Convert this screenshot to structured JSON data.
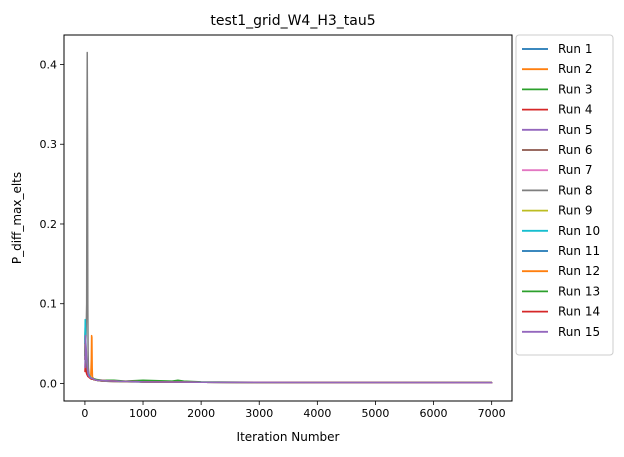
{
  "chart_data": {
    "type": "line",
    "title": "test1_grid_W4_H3_tau5",
    "xlabel": "Iteration Number",
    "ylabel": "P_diff_max_elts",
    "xlim": [
      -360,
      7350
    ],
    "ylim": [
      -0.022,
      0.437
    ],
    "xticks": [
      0,
      1000,
      2000,
      3000,
      4000,
      5000,
      6000,
      7000
    ],
    "yticks": [
      0.0,
      0.1,
      0.2,
      0.3,
      0.4
    ],
    "xtick_labels": [
      "0",
      "1000",
      "2000",
      "3000",
      "4000",
      "5000",
      "6000",
      "7000"
    ],
    "ytick_labels": [
      "0.0",
      "0.1",
      "0.2",
      "0.3",
      "0.4"
    ],
    "grid": false,
    "legend_position": "outside-right-top",
    "series": [
      {
        "name": "Run 1",
        "color": "#1f77b4",
        "x": [
          1,
          5,
          10,
          15,
          20,
          25,
          30,
          40,
          50,
          60,
          80,
          100,
          150,
          200,
          300,
          500,
          800,
          1200,
          2000,
          3000,
          5000,
          7000
        ],
        "y": [
          0.055,
          0.07,
          0.045,
          0.035,
          0.03,
          0.025,
          0.02,
          0.015,
          0.012,
          0.01,
          0.008,
          0.007,
          0.005,
          0.004,
          0.003,
          0.0025,
          0.002,
          0.0018,
          0.0015,
          0.0012,
          0.001,
          0.001
        ]
      },
      {
        "name": "Run 2",
        "color": "#ff7f0e",
        "x": [
          1,
          5,
          10,
          20,
          30,
          50,
          80,
          100,
          110,
          115,
          120,
          125,
          130,
          150,
          200,
          300,
          500,
          1000,
          2000,
          4000,
          7000
        ],
        "y": [
          0.04,
          0.06,
          0.045,
          0.03,
          0.02,
          0.012,
          0.008,
          0.007,
          0.03,
          0.06,
          0.058,
          0.02,
          0.008,
          0.006,
          0.004,
          0.003,
          0.0025,
          0.002,
          0.0015,
          0.0012,
          0.001
        ]
      },
      {
        "name": "Run 3",
        "color": "#2ca02c",
        "x": [
          1,
          5,
          10,
          20,
          30,
          50,
          100,
          200,
          300,
          500,
          700,
          1000,
          1500,
          1600,
          1700,
          2000,
          3000,
          5000,
          7000
        ],
        "y": [
          0.05,
          0.065,
          0.045,
          0.03,
          0.02,
          0.013,
          0.007,
          0.005,
          0.004,
          0.004,
          0.003,
          0.004,
          0.003,
          0.004,
          0.003,
          0.002,
          0.0015,
          0.0012,
          0.001
        ]
      },
      {
        "name": "Run 4",
        "color": "#d62728",
        "x": [
          1,
          5,
          10,
          20,
          30,
          50,
          100,
          200,
          500,
          1000,
          2000,
          4000,
          7000
        ],
        "y": [
          0.035,
          0.05,
          0.03,
          0.02,
          0.015,
          0.01,
          0.006,
          0.004,
          0.003,
          0.002,
          0.0015,
          0.0012,
          0.001
        ]
      },
      {
        "name": "Run 5",
        "color": "#9467bd",
        "x": [
          1,
          5,
          10,
          20,
          30,
          50,
          100,
          200,
          500,
          1000,
          2000,
          4000,
          7000
        ],
        "y": [
          0.045,
          0.06,
          0.04,
          0.025,
          0.018,
          0.012,
          0.007,
          0.004,
          0.003,
          0.002,
          0.0015,
          0.0012,
          0.001
        ]
      },
      {
        "name": "Run 6",
        "color": "#8c564b",
        "x": [
          1,
          5,
          10,
          20,
          30,
          50,
          100,
          200,
          500,
          1000,
          2000,
          4000,
          7000
        ],
        "y": [
          0.03,
          0.045,
          0.03,
          0.02,
          0.014,
          0.01,
          0.006,
          0.004,
          0.003,
          0.002,
          0.0015,
          0.0012,
          0.001
        ]
      },
      {
        "name": "Run 7",
        "color": "#e377c2",
        "x": [
          1,
          5,
          10,
          20,
          30,
          50,
          100,
          200,
          500,
          1000,
          2000,
          4000,
          7000
        ],
        "y": [
          0.04,
          0.055,
          0.035,
          0.022,
          0.016,
          0.011,
          0.006,
          0.004,
          0.003,
          0.002,
          0.0015,
          0.0012,
          0.001
        ]
      },
      {
        "name": "Run 8",
        "color": "#7f7f7f",
        "x": [
          1,
          10,
          20,
          30,
          35,
          40,
          45,
          50,
          55,
          60,
          70,
          80,
          100,
          150,
          200,
          300,
          500,
          1000,
          2000,
          4000,
          7000
        ],
        "y": [
          0.04,
          0.05,
          0.06,
          0.1,
          0.3,
          0.415,
          0.3,
          0.1,
          0.04,
          0.02,
          0.012,
          0.009,
          0.007,
          0.005,
          0.004,
          0.003,
          0.0025,
          0.002,
          0.0015,
          0.0012,
          0.001
        ]
      },
      {
        "name": "Run 9",
        "color": "#bcbd22",
        "x": [
          1,
          5,
          10,
          20,
          30,
          50,
          100,
          200,
          500,
          1000,
          2000,
          4000,
          7000
        ],
        "y": [
          0.035,
          0.05,
          0.03,
          0.02,
          0.014,
          0.01,
          0.006,
          0.004,
          0.003,
          0.002,
          0.0015,
          0.0012,
          0.001
        ]
      },
      {
        "name": "Run 10",
        "color": "#17becf",
        "x": [
          1,
          5,
          10,
          15,
          20,
          30,
          50,
          100,
          200,
          500,
          1000,
          2000,
          4000,
          7000
        ],
        "y": [
          0.05,
          0.08,
          0.07,
          0.055,
          0.04,
          0.025,
          0.013,
          0.007,
          0.004,
          0.003,
          0.002,
          0.0015,
          0.0012,
          0.001
        ]
      },
      {
        "name": "Run 11",
        "color": "#1f77b4",
        "x": [
          1,
          5,
          10,
          20,
          30,
          50,
          100,
          200,
          500,
          1000,
          2000,
          4000,
          7000
        ],
        "y": [
          0.03,
          0.045,
          0.03,
          0.02,
          0.014,
          0.01,
          0.006,
          0.004,
          0.003,
          0.002,
          0.0015,
          0.0012,
          0.001
        ]
      },
      {
        "name": "Run 12",
        "color": "#ff7f0e",
        "x": [
          1,
          5,
          10,
          20,
          30,
          50,
          100,
          200,
          500,
          1000,
          2000,
          4000,
          7000
        ],
        "y": [
          0.03,
          0.04,
          0.028,
          0.018,
          0.013,
          0.009,
          0.006,
          0.004,
          0.003,
          0.002,
          0.0015,
          0.0012,
          0.001
        ]
      },
      {
        "name": "Run 13",
        "color": "#2ca02c",
        "x": [
          1,
          5,
          10,
          20,
          30,
          50,
          100,
          200,
          500,
          1000,
          2000,
          4000,
          7000
        ],
        "y": [
          0.035,
          0.05,
          0.032,
          0.02,
          0.015,
          0.01,
          0.006,
          0.004,
          0.003,
          0.002,
          0.0015,
          0.0012,
          0.001
        ]
      },
      {
        "name": "Run 14",
        "color": "#d62728",
        "x": [
          1,
          5,
          10,
          20,
          30,
          50,
          100,
          200,
          500,
          1000,
          2000,
          4000,
          7000
        ],
        "y": [
          0.015,
          0.025,
          0.02,
          0.015,
          0.012,
          0.009,
          0.006,
          0.004,
          0.003,
          0.002,
          0.0015,
          0.0012,
          0.001
        ]
      },
      {
        "name": "Run 15",
        "color": "#9467bd",
        "x": [
          1,
          5,
          10,
          15,
          20,
          25,
          30,
          40,
          50,
          60,
          80,
          100,
          200,
          500,
          1000,
          2000,
          4000,
          7000
        ],
        "y": [
          0.02,
          0.04,
          0.06,
          0.05,
          0.045,
          0.04,
          0.03,
          0.02,
          0.014,
          0.01,
          0.008,
          0.007,
          0.004,
          0.003,
          0.002,
          0.0015,
          0.0012,
          0.001
        ]
      }
    ]
  }
}
